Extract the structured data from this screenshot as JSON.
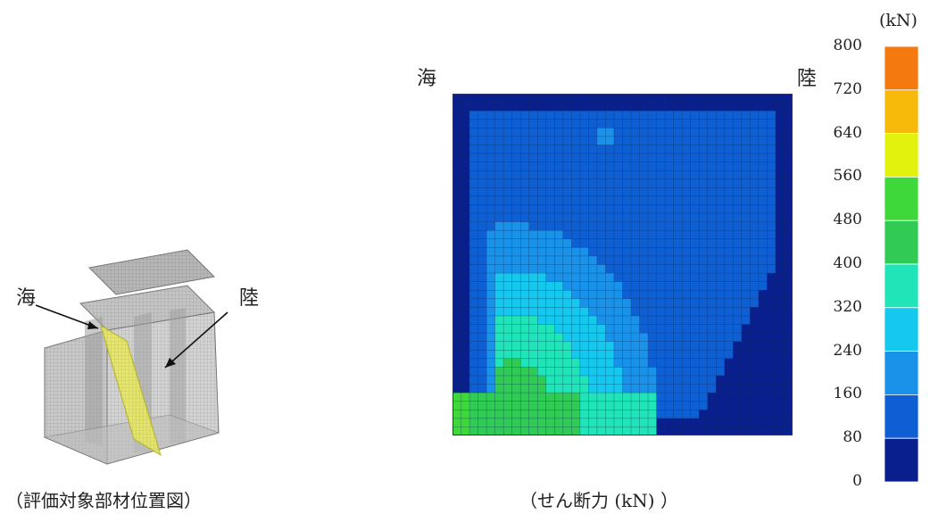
{
  "left_panel": {
    "label_sea": "海",
    "label_land": "陸",
    "caption": "（評価対象部材位置図）"
  },
  "contour_panel": {
    "label_sea": "海",
    "label_land": "陸",
    "caption": "（せん断力 (kN) ）"
  },
  "colorbar": {
    "unit": "(kN)",
    "ticks": [
      "800",
      "720",
      "640",
      "560",
      "480",
      "400",
      "320",
      "240",
      "160",
      "80",
      "0"
    ],
    "colors": [
      "#f47a10",
      "#f7b90a",
      "#e3f20d",
      "#3fd83a",
      "#2fcb55",
      "#1fe5b8",
      "#14c8ee",
      "#1992ea",
      "#0f5fd4",
      "#0a1f8e"
    ]
  }
}
